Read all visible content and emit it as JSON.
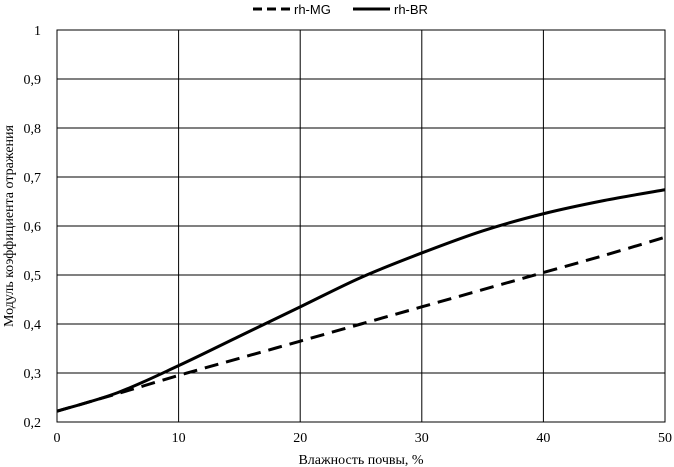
{
  "chart_data": {
    "type": "line",
    "title": "",
    "xlabel": "Влажность почвы, %",
    "ylabel": "Модуль коэффициента отражения",
    "xlim": [
      0,
      50
    ],
    "ylim": [
      0.2,
      1
    ],
    "x_ticks": [
      "0",
      "10",
      "20",
      "30",
      "40",
      "50"
    ],
    "y_ticks": [
      "0,2",
      "0,3",
      "0,4",
      "0,5",
      "0,6",
      "0,7",
      "0,8",
      "0,9",
      "1"
    ],
    "grid": true,
    "legend_position": "top",
    "series": [
      {
        "name": "rh-MG",
        "style": "dashed",
        "color": "#000000",
        "x": [
          0,
          5,
          10,
          15,
          20,
          25,
          30,
          35,
          40,
          45,
          50
        ],
        "y": [
          0.222,
          0.258,
          0.295,
          0.33,
          0.365,
          0.4,
          0.435,
          0.47,
          0.505,
          0.54,
          0.577
        ]
      },
      {
        "name": "rh-BR",
        "style": "solid",
        "color": "#000000",
        "x": [
          0,
          5,
          10,
          15,
          20,
          25,
          30,
          35,
          40,
          45,
          50
        ],
        "y": [
          0.222,
          0.26,
          0.315,
          0.375,
          0.435,
          0.495,
          0.545,
          0.59,
          0.625,
          0.652,
          0.674
        ]
      }
    ]
  }
}
